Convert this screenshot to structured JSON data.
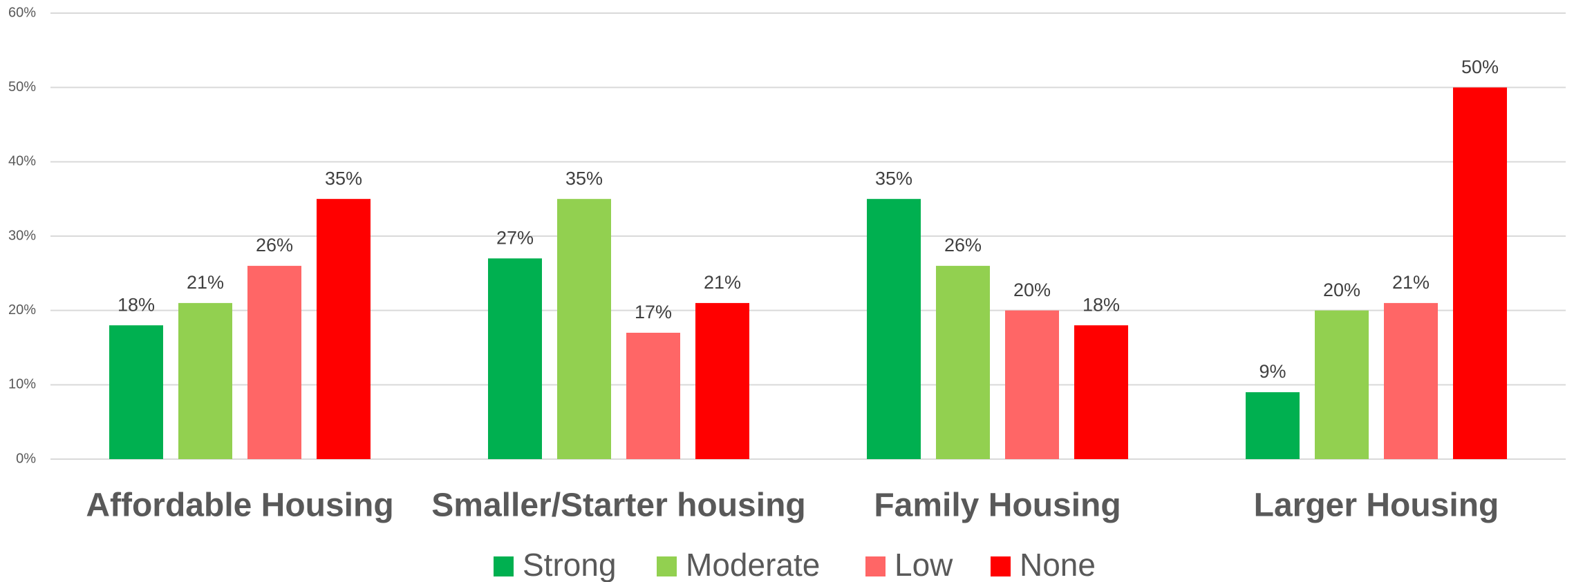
{
  "chart_data": {
    "type": "bar",
    "categories": [
      "Affordable Housing",
      "Smaller/Starter housing",
      "Family Housing",
      "Larger Housing"
    ],
    "series": [
      {
        "name": "Strong",
        "color": "#00b050",
        "values": [
          18,
          27,
          35,
          9
        ],
        "value_labels": [
          "18%",
          "27%",
          "35%",
          "9%"
        ]
      },
      {
        "name": "Moderate",
        "color": "#92d050",
        "values": [
          21,
          35,
          26,
          20
        ],
        "value_labels": [
          "21%",
          "35%",
          "26%",
          "20%"
        ]
      },
      {
        "name": "Low",
        "color": "#ff6666",
        "values": [
          26,
          17,
          20,
          21
        ],
        "value_labels": [
          "26%",
          "17%",
          "20%",
          "21%"
        ]
      },
      {
        "name": "None",
        "color": "#ff0000",
        "values": [
          35,
          21,
          18,
          50
        ],
        "value_labels": [
          "35%",
          "21%",
          "18%",
          "50%"
        ]
      }
    ],
    "ylim": [
      0,
      60
    ],
    "yticks": [
      {
        "value": 0,
        "label": "0%"
      },
      {
        "value": 10,
        "label": "10%"
      },
      {
        "value": 20,
        "label": "20%"
      },
      {
        "value": 30,
        "label": "30%"
      },
      {
        "value": 40,
        "label": "40%"
      },
      {
        "value": 50,
        "label": "50%"
      },
      {
        "value": 60,
        "label": "60%"
      }
    ],
    "grid": true,
    "legend": "bottom"
  }
}
